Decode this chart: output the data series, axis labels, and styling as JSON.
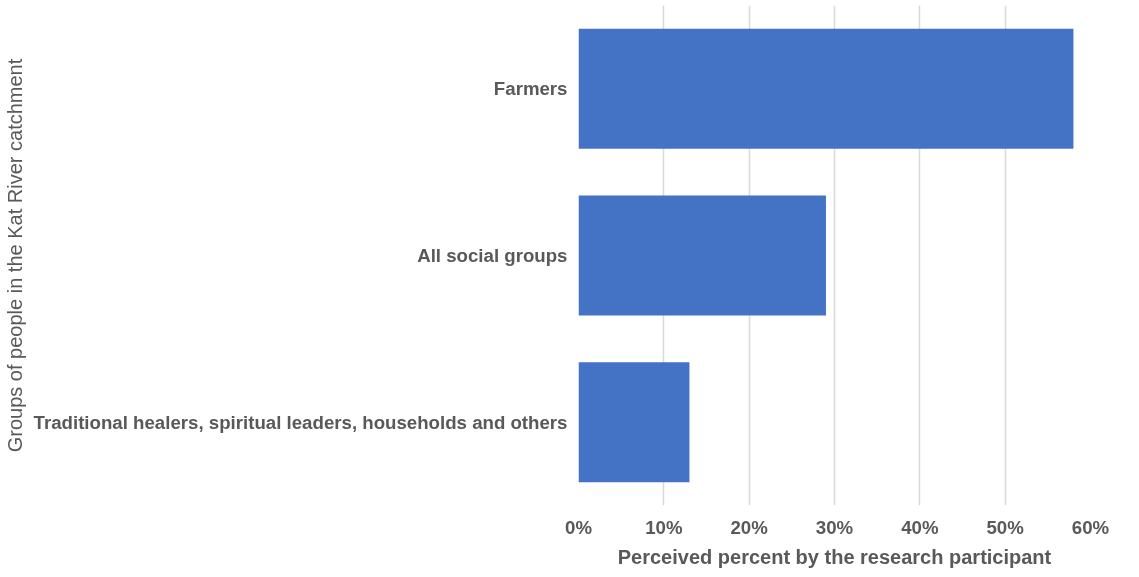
{
  "chart_data": {
    "type": "bar",
    "orientation": "horizontal",
    "xlabel": "Perceived percent by the research participant",
    "ylabel": "Groups of people in the Kat River catchment",
    "categories": [
      "Farmers",
      "All social groups",
      "Traditional healers, spiritual leaders, households and others"
    ],
    "values": [
      58,
      29,
      13
    ],
    "color": "#4472c4",
    "xlim": [
      0,
      60
    ],
    "xticks": [
      {
        "value": 0,
        "label": "0%"
      },
      {
        "value": 10,
        "label": "10%"
      },
      {
        "value": 20,
        "label": "20%"
      },
      {
        "value": 30,
        "label": "30%"
      },
      {
        "value": 40,
        "label": "40%"
      },
      {
        "value": 50,
        "label": "50%"
      },
      {
        "value": 60,
        "label": "60%"
      }
    ],
    "grid": "x"
  }
}
